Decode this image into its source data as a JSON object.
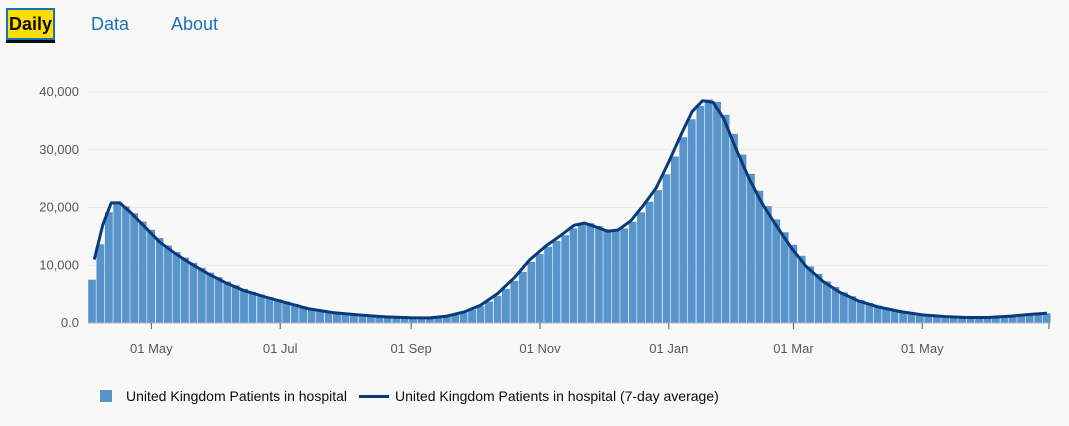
{
  "nav": {
    "tabs": [
      {
        "label": "Daily",
        "active": true
      },
      {
        "label": "Data",
        "active": false
      },
      {
        "label": "About",
        "active": false
      }
    ]
  },
  "colors": {
    "bar": "#5694ca",
    "line": "#0b3a7a",
    "grid": "#e6e6e6",
    "active_tab_bg": "#ffdd00",
    "link": "#1d70b8"
  },
  "legend": {
    "bar_label": "United Kingdom Patients in hospital",
    "line_label": "United Kingdom Patients in hospital (7-day average)"
  },
  "chart_data": {
    "type": "bar",
    "title": "",
    "xlabel": "",
    "ylabel": "",
    "ylim": [
      0,
      40000
    ],
    "yticks": [
      {
        "value": 0,
        "label": "0.0"
      },
      {
        "value": 10000,
        "label": "10,000"
      },
      {
        "value": 20000,
        "label": "20,000"
      },
      {
        "value": 30000,
        "label": "30,000"
      },
      {
        "value": 40000,
        "label": "40,000"
      }
    ],
    "x_range": [
      "2020-04-01",
      "2021-06-30"
    ],
    "xticks": [
      {
        "date": "2020-05-01",
        "label": "01 May"
      },
      {
        "date": "2020-07-01",
        "label": "01 Jul"
      },
      {
        "date": "2020-09-01",
        "label": "01 Sep"
      },
      {
        "date": "2020-11-01",
        "label": "01 Nov"
      },
      {
        "date": "2021-01-01",
        "label": "01 Jan"
      },
      {
        "date": "2021-03-01",
        "label": "01 Mar"
      },
      {
        "date": "2021-05-01",
        "label": "01 May"
      }
    ],
    "grid": true,
    "legend_position": "bottom-left",
    "series": [
      {
        "name": "United Kingdom Patients in hospital",
        "kind": "bar",
        "points": [
          [
            "2020-04-01",
            7500
          ],
          [
            "2020-04-04",
            12000
          ],
          [
            "2020-04-08",
            18500
          ],
          [
            "2020-04-12",
            21200
          ],
          [
            "2020-04-16",
            20500
          ],
          [
            "2020-04-21",
            19000
          ],
          [
            "2020-04-28",
            16500
          ],
          [
            "2020-05-05",
            14000
          ],
          [
            "2020-05-12",
            12000
          ],
          [
            "2020-05-20",
            10200
          ],
          [
            "2020-05-28",
            8500
          ],
          [
            "2020-06-05",
            7000
          ],
          [
            "2020-06-14",
            5600
          ],
          [
            "2020-06-24",
            4500
          ],
          [
            "2020-07-04",
            3500
          ],
          [
            "2020-07-14",
            2500
          ],
          [
            "2020-07-26",
            1800
          ],
          [
            "2020-08-07",
            1400
          ],
          [
            "2020-08-20",
            1050
          ],
          [
            "2020-09-01",
            900
          ],
          [
            "2020-09-10",
            850
          ],
          [
            "2020-09-18",
            1200
          ],
          [
            "2020-09-26",
            2000
          ],
          [
            "2020-10-04",
            3200
          ],
          [
            "2020-10-12",
            5200
          ],
          [
            "2020-10-20",
            8000
          ],
          [
            "2020-10-27",
            11000
          ],
          [
            "2020-11-04",
            13500
          ],
          [
            "2020-11-11",
            15200
          ],
          [
            "2020-11-17",
            17000
          ],
          [
            "2020-11-22",
            17400
          ],
          [
            "2020-11-27",
            16800
          ],
          [
            "2020-12-03",
            15900
          ],
          [
            "2020-12-08",
            16100
          ],
          [
            "2020-12-14",
            17800
          ],
          [
            "2020-12-20",
            20500
          ],
          [
            "2020-12-26",
            23500
          ],
          [
            "2021-01-01",
            28000
          ],
          [
            "2021-01-07",
            33000
          ],
          [
            "2021-01-12",
            36800
          ],
          [
            "2021-01-17",
            38800
          ],
          [
            "2021-01-22",
            38300
          ],
          [
            "2021-01-27",
            35500
          ],
          [
            "2021-02-02",
            30000
          ],
          [
            "2021-02-08",
            25000
          ],
          [
            "2021-02-14",
            20800
          ],
          [
            "2021-02-21",
            16800
          ],
          [
            "2021-02-28",
            13000
          ],
          [
            "2021-03-07",
            9800
          ],
          [
            "2021-03-15",
            7200
          ],
          [
            "2021-03-23",
            5300
          ],
          [
            "2021-04-01",
            3800
          ],
          [
            "2021-04-10",
            2800
          ],
          [
            "2021-04-20",
            2000
          ],
          [
            "2021-05-01",
            1400
          ],
          [
            "2021-05-12",
            1100
          ],
          [
            "2021-05-22",
            950
          ],
          [
            "2021-06-01",
            950
          ],
          [
            "2021-06-12",
            1200
          ],
          [
            "2021-06-22",
            1500
          ],
          [
            "2021-06-30",
            1800
          ]
        ]
      },
      {
        "name": "United Kingdom Patients in hospital (7-day average)",
        "kind": "line",
        "points": [
          [
            "2020-04-04",
            11000
          ],
          [
            "2020-04-08",
            17000
          ],
          [
            "2020-04-12",
            20800
          ],
          [
            "2020-04-16",
            20800
          ],
          [
            "2020-04-21",
            19200
          ],
          [
            "2020-04-28",
            16600
          ],
          [
            "2020-05-05",
            14000
          ],
          [
            "2020-05-12",
            12100
          ],
          [
            "2020-05-20",
            10200
          ],
          [
            "2020-05-28",
            8500
          ],
          [
            "2020-06-05",
            7000
          ],
          [
            "2020-06-14",
            5600
          ],
          [
            "2020-06-24",
            4500
          ],
          [
            "2020-07-04",
            3500
          ],
          [
            "2020-07-14",
            2500
          ],
          [
            "2020-07-26",
            1800
          ],
          [
            "2020-08-07",
            1400
          ],
          [
            "2020-08-20",
            1050
          ],
          [
            "2020-09-01",
            900
          ],
          [
            "2020-09-10",
            880
          ],
          [
            "2020-09-18",
            1200
          ],
          [
            "2020-09-26",
            1900
          ],
          [
            "2020-10-04",
            3100
          ],
          [
            "2020-10-12",
            5100
          ],
          [
            "2020-10-20",
            7900
          ],
          [
            "2020-10-27",
            10900
          ],
          [
            "2020-11-04",
            13400
          ],
          [
            "2020-11-11",
            15200
          ],
          [
            "2020-11-17",
            16900
          ],
          [
            "2020-11-22",
            17300
          ],
          [
            "2020-11-27",
            16700
          ],
          [
            "2020-12-03",
            15900
          ],
          [
            "2020-12-08",
            16100
          ],
          [
            "2020-12-14",
            17700
          ],
          [
            "2020-12-20",
            20400
          ],
          [
            "2020-12-26",
            23400
          ],
          [
            "2021-01-01",
            27900
          ],
          [
            "2021-01-07",
            32800
          ],
          [
            "2021-01-12",
            36600
          ],
          [
            "2021-01-17",
            38500
          ],
          [
            "2021-01-22",
            38200
          ],
          [
            "2021-01-27",
            35400
          ],
          [
            "2021-02-02",
            30000
          ],
          [
            "2021-02-08",
            25000
          ],
          [
            "2021-02-14",
            20800
          ],
          [
            "2021-02-21",
            16800
          ],
          [
            "2021-02-28",
            13000
          ],
          [
            "2021-03-07",
            9800
          ],
          [
            "2021-03-15",
            7200
          ],
          [
            "2021-03-23",
            5300
          ],
          [
            "2021-04-01",
            3800
          ],
          [
            "2021-04-10",
            2800
          ],
          [
            "2021-04-20",
            2000
          ],
          [
            "2021-05-01",
            1400
          ],
          [
            "2021-05-12",
            1100
          ],
          [
            "2021-05-22",
            950
          ],
          [
            "2021-06-01",
            950
          ],
          [
            "2021-06-12",
            1200
          ],
          [
            "2021-06-22",
            1500
          ],
          [
            "2021-06-29",
            1700
          ]
        ]
      }
    ]
  }
}
